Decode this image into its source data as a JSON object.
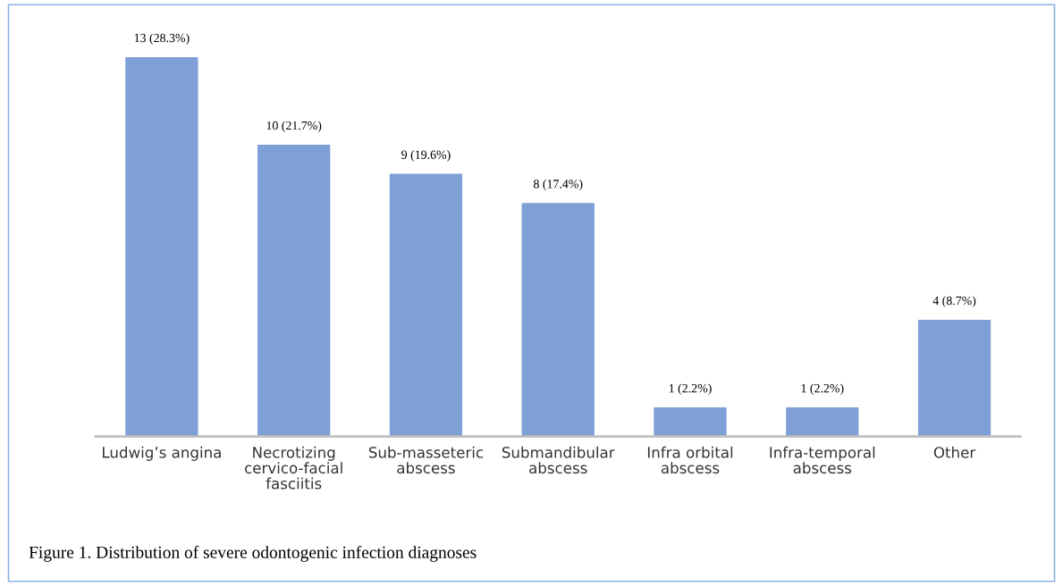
{
  "chart_data": {
    "type": "bar",
    "categories": [
      "Ludwig’s angina",
      "Necrotizing\ncervico-facial\nfasciitis",
      "Sub-masseteric\nabscess",
      "Submandibular\nabscess",
      "Infra orbital\nabscess",
      "Infra-temporal\nabscess",
      "Other"
    ],
    "values": [
      13,
      10,
      9,
      8,
      1,
      1,
      4
    ],
    "value_labels": [
      "13 (28.3%)",
      "10 (21.7%)",
      "9 (19.6%)",
      "8 (17.4%)",
      "1 (2.2%)",
      "1 (2.2%)",
      "4 (8.7%)"
    ],
    "color": "#7f9fd7",
    "grid": false,
    "annotations": [
      "Figure 1. Distribution of severe odontogenic infection diagnoses"
    ]
  }
}
